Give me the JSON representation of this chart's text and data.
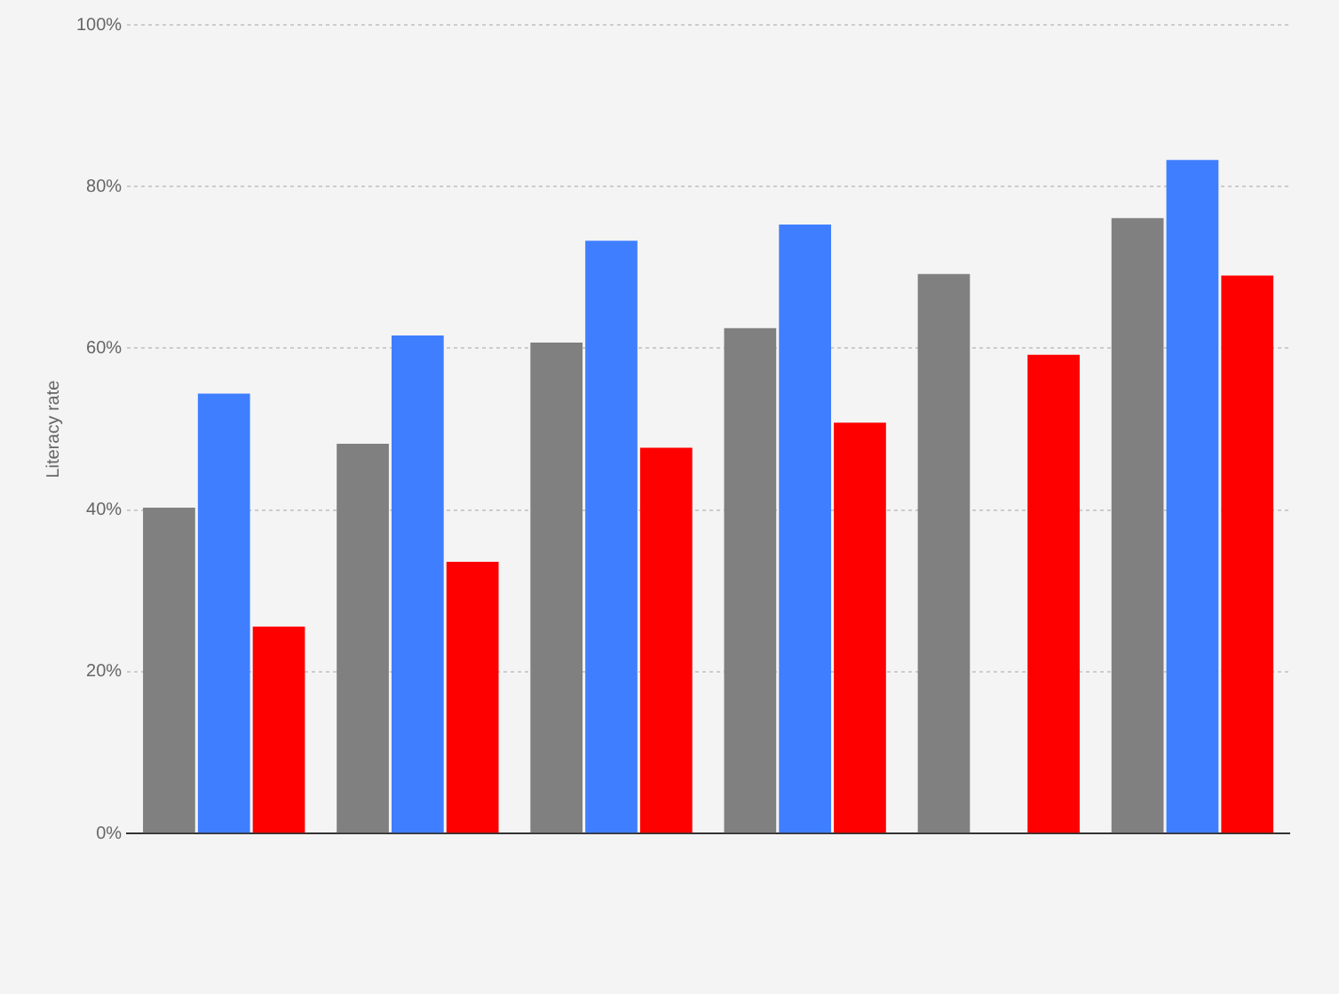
{
  "chart_data": {
    "type": "bar",
    "ylabel": "Literacy rate",
    "categories": [
      null,
      null,
      null,
      null,
      null,
      null
    ],
    "series": [
      {
        "color": "#808080",
        "values": [
          40.3,
          48.2,
          60.7,
          62.5,
          69.2,
          76.1
        ]
      },
      {
        "color": "#3f7fff",
        "values": [
          54.4,
          61.6,
          73.3,
          75.3,
          null,
          83.3
        ]
      },
      {
        "color": "#ff0000",
        "values": [
          25.6,
          33.6,
          47.7,
          50.8,
          59.2,
          69.0
        ]
      }
    ],
    "ylim": [
      0,
      100
    ],
    "yticks": [
      {
        "value": 0,
        "label": "0%"
      },
      {
        "value": 20,
        "label": "20%"
      },
      {
        "value": 40,
        "label": "40%"
      },
      {
        "value": 60,
        "label": "60%"
      },
      {
        "value": 80,
        "label": "80%"
      },
      {
        "value": 100,
        "label": "100%"
      }
    ],
    "grid": "y",
    "legend": false
  }
}
